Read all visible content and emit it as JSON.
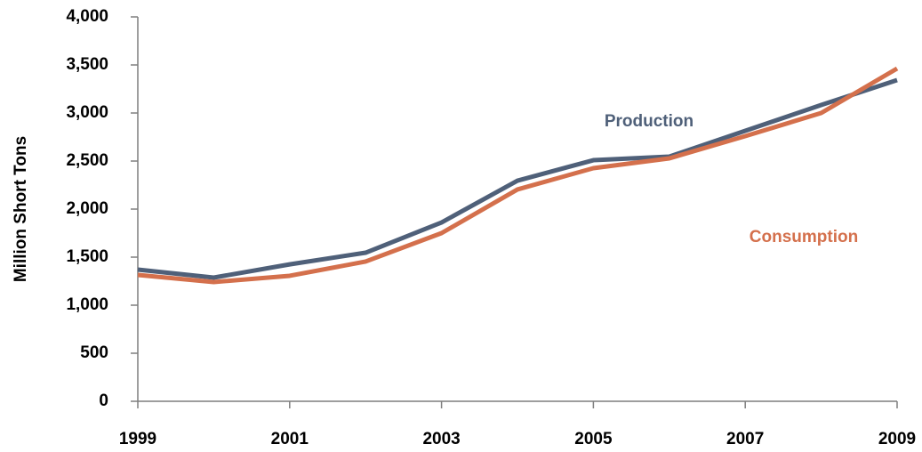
{
  "chart_data": {
    "type": "line",
    "y_label": "Million Short Tons",
    "x": [
      1999,
      2000,
      2001,
      2002,
      2003,
      2004,
      2005,
      2006,
      2007,
      2008,
      2009
    ],
    "xlim": [
      1999,
      2009
    ],
    "xticks": [
      1999,
      2001,
      2003,
      2005,
      2007,
      2009
    ],
    "ylim": [
      0,
      4000
    ],
    "yticks": [
      0,
      500,
      {
        "value": 1000,
        "label": "1,000"
      },
      {
        "value": 1500,
        "label": "1,500"
      },
      {
        "value": 2000,
        "label": "2,000"
      },
      {
        "value": 2500,
        "label": "2,500"
      },
      {
        "value": 3000,
        "label": "3,000"
      },
      {
        "value": 3500,
        "label": "3,500"
      },
      {
        "value": 4000,
        "label": "4,000"
      }
    ],
    "grid": false,
    "series": [
      {
        "name": "Production",
        "color": "#4f6079",
        "values": [
          1370,
          1287,
          1425,
          1546,
          1861,
          2296,
          2509,
          2546,
          2815,
          3083,
          3343
        ]
      },
      {
        "name": "Consumption",
        "color": "#d4704c",
        "values": [
          1315,
          1241,
          1306,
          1454,
          1750,
          2204,
          2426,
          2528,
          2759,
          3000,
          3463
        ]
      }
    ]
  }
}
